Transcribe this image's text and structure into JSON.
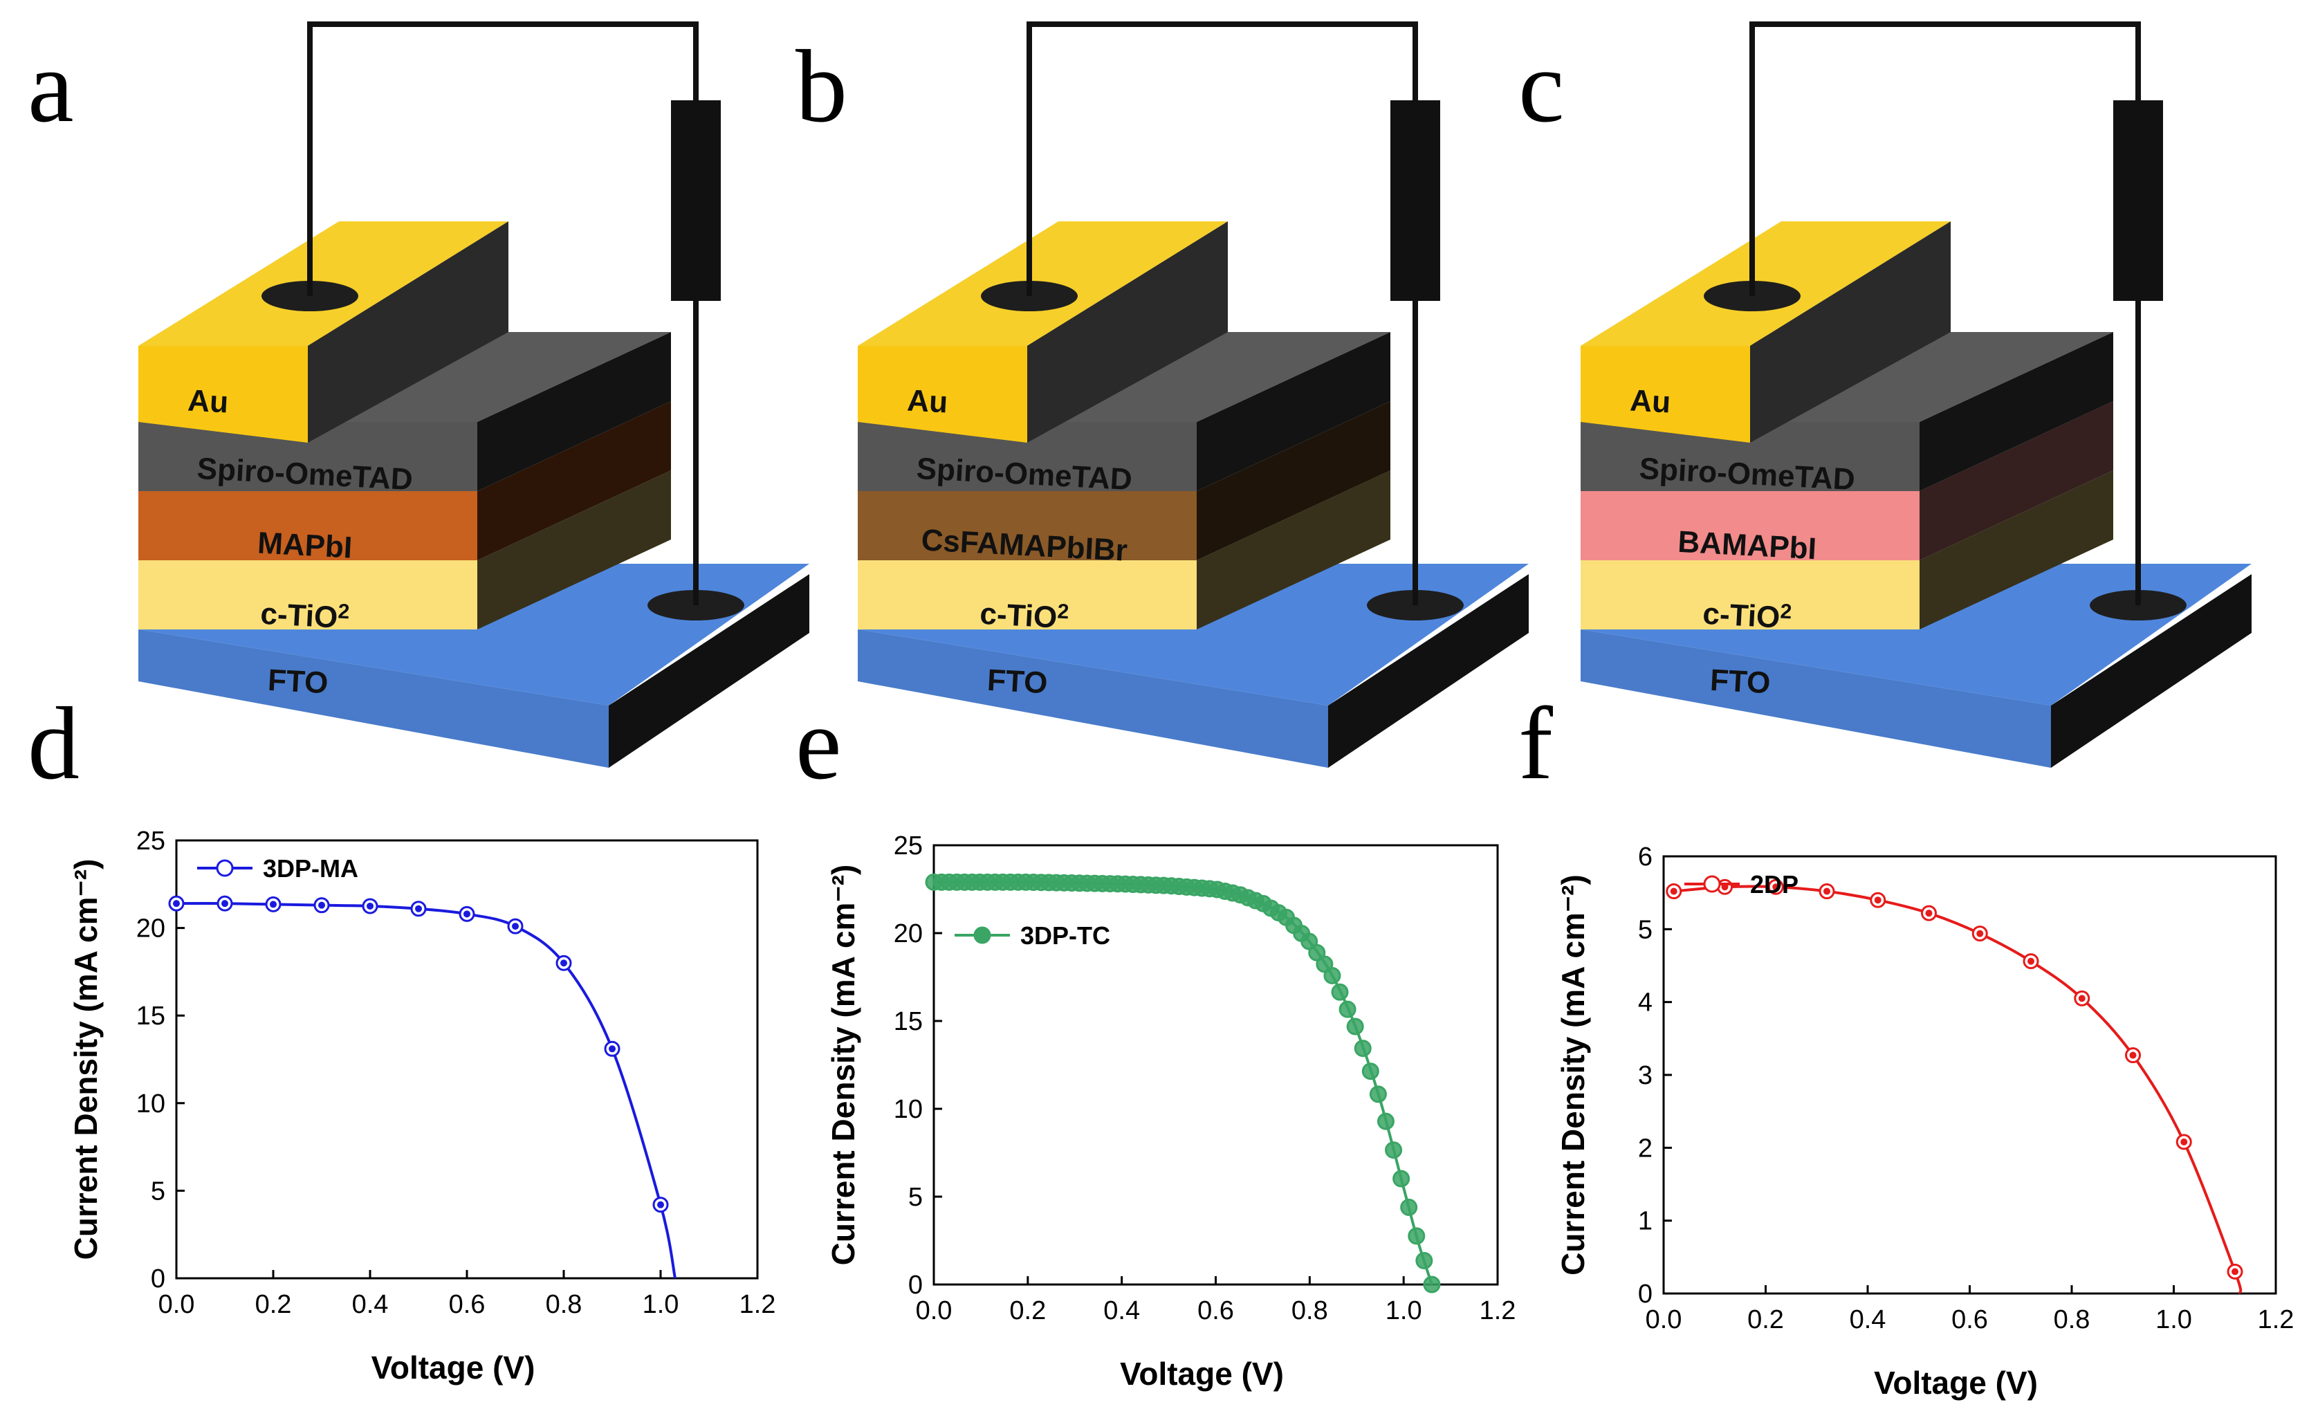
{
  "panel_letters": {
    "a": "a",
    "b": "b",
    "c": "c",
    "d": "d",
    "e": "e",
    "f": "f"
  },
  "devices": [
    {
      "letter": "a",
      "layers": {
        "top": "Au",
        "htm": "Spiro-OmeTAD",
        "absorber": "MAPbI",
        "etl_base": "c-TiO",
        "etl_sup": "2",
        "substrate": "FTO"
      },
      "absorber_color": "#c8601f"
    },
    {
      "letter": "b",
      "layers": {
        "top": "Au",
        "htm": "Spiro-OmeTAD",
        "absorber": "CsFAMAPbIBr",
        "etl_base": "c-TiO",
        "etl_sup": "2",
        "substrate": "FTO"
      },
      "absorber_color": "#8a5a28"
    },
    {
      "letter": "c",
      "layers": {
        "top": "Au",
        "htm": "Spiro-OmeTAD",
        "absorber": "BAMAPbI",
        "etl_base": "c-TiO",
        "etl_sup": "2",
        "substrate": "FTO"
      },
      "absorber_color": "#f28b8b"
    }
  ],
  "layer_colors": {
    "au": "#f9c713",
    "htm": "#555555",
    "etl": "#fbe07a",
    "fto": "#4f86dc",
    "side": "#1f1f1f",
    "wire": "#111111"
  },
  "chart_data": [
    {
      "panel": "d",
      "type": "line",
      "color": "#1a1adf",
      "legend": "3DP-MA",
      "legend_pos": "top-left",
      "xlabel": "Voltage (V)",
      "ylabel": "Current Density (mA cm⁻²)",
      "xlim": [
        0,
        1.2
      ],
      "ylim": [
        0,
        25
      ],
      "xticks": [
        "0.0",
        "0.2",
        "0.4",
        "0.6",
        "0.8",
        "1.0",
        "1.2"
      ],
      "yticks": [
        "0",
        "5",
        "10",
        "15",
        "20",
        "25"
      ],
      "x": [
        0.0,
        0.1,
        0.2,
        0.3,
        0.4,
        0.5,
        0.6,
        0.7,
        0.8,
        0.9,
        1.0,
        1.03
      ],
      "y": [
        21.4,
        21.4,
        21.35,
        21.3,
        21.25,
        21.1,
        20.8,
        20.1,
        18.0,
        13.1,
        4.2,
        0.0
      ],
      "markers": 11
    },
    {
      "panel": "e",
      "type": "line",
      "color": "#3aa564",
      "legend": "3DP-TC",
      "legend_pos": "top-left",
      "xlabel": "Voltage (V)",
      "ylabel": "Current Density (mA cm⁻²)",
      "xlim": [
        0,
        1.2
      ],
      "ylim": [
        0,
        25
      ],
      "xticks": [
        "0.0",
        "0.2",
        "0.4",
        "0.6",
        "0.8",
        "1.0",
        "1.2"
      ],
      "yticks": [
        "0",
        "5",
        "10",
        "15",
        "20",
        "25"
      ],
      "x": [
        0.0,
        0.1,
        0.2,
        0.3,
        0.4,
        0.5,
        0.6,
        0.65,
        0.7,
        0.75,
        0.8,
        0.85,
        0.9,
        0.95,
        1.0,
        1.03,
        1.06
      ],
      "y": [
        22.9,
        22.9,
        22.9,
        22.85,
        22.8,
        22.7,
        22.5,
        22.2,
        21.7,
        20.9,
        19.5,
        17.5,
        14.5,
        10.5,
        5.5,
        2.5,
        0.0
      ],
      "markers": 66
    },
    {
      "panel": "f",
      "type": "line",
      "color": "#e61b1b",
      "legend": "2DP",
      "legend_pos": "top-left",
      "xlabel": "Voltage (V)",
      "ylabel": "Current Density (mA cm⁻²)",
      "xlim": [
        0,
        1.2
      ],
      "ylim": [
        0,
        6
      ],
      "xticks": [
        "0.0",
        "0.2",
        "0.4",
        "0.6",
        "0.8",
        "1.0",
        "1.2"
      ],
      "yticks": [
        "0",
        "1",
        "2",
        "3",
        "4",
        "5",
        "6"
      ],
      "x": [
        0.02,
        0.12,
        0.22,
        0.32,
        0.42,
        0.52,
        0.62,
        0.72,
        0.82,
        0.92,
        1.02,
        1.12,
        1.13
      ],
      "y": [
        5.52,
        5.58,
        5.58,
        5.52,
        5.4,
        5.22,
        4.94,
        4.56,
        4.05,
        3.27,
        2.08,
        0.3,
        0.0
      ],
      "markers": 12
    }
  ]
}
